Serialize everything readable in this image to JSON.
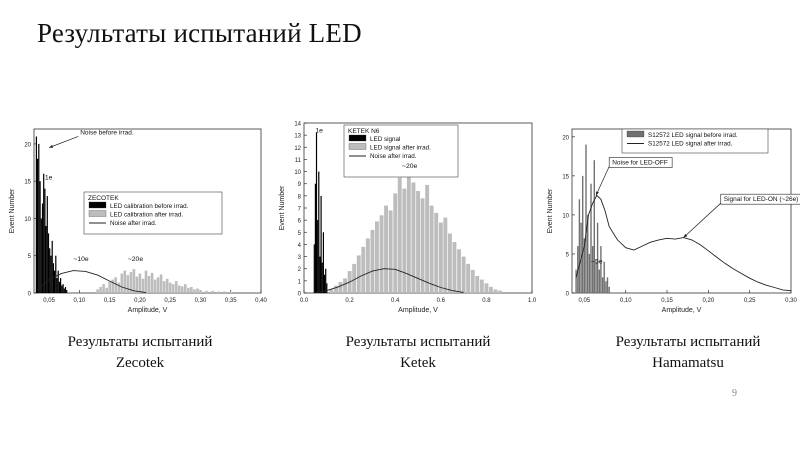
{
  "slide": {
    "title": "Результаты испытаний LED",
    "page_number": "9",
    "captions": [
      {
        "line1": "Результаты испытаний",
        "line2": "Zecotek"
      },
      {
        "line1": "Результаты испытаний",
        "line2": "Ketek"
      },
      {
        "line1": "Результаты  испытаний",
        "line2": "Hamamatsu"
      }
    ]
  },
  "colors": {
    "black": "#000000",
    "gray": "#bdbdbd",
    "darkgray": "#707070",
    "line": "#222222"
  },
  "chart_data": [
    {
      "type": "bar",
      "title": "ZECOTEK",
      "xlabel": "Amplitude, V",
      "ylabel": "Event Number",
      "xlim": [
        0.025,
        0.4
      ],
      "ylim": [
        0,
        22
      ],
      "xticks": [
        0.05,
        0.1,
        0.15,
        0.2,
        0.25,
        0.3,
        0.35,
        0.4
      ],
      "xticklabels": [
        "0,05",
        "0,10",
        "0,15",
        "0,20",
        "0,25",
        "0,30",
        "0,35",
        "0,40"
      ],
      "yticks": [
        0,
        5,
        10,
        15,
        20
      ],
      "legend": [
        {
          "label": "LED calibration before irrad.",
          "style": "black-fill"
        },
        {
          "label": "LED calibration after irrad.",
          "style": "gray-fill"
        },
        {
          "label": "Noise after irrad.",
          "style": "line"
        }
      ],
      "annotations": [
        {
          "text": "Noise before irrad.",
          "x": 0.05,
          "y": 19.5,
          "arrow": true,
          "tx": 0.098,
          "ty": 21
        },
        {
          "text": "1e",
          "x": 0.043,
          "y": 15.2
        },
        {
          "text": "~10e",
          "x": 0.09,
          "y": 4.3
        },
        {
          "text": "~20e",
          "x": 0.18,
          "y": 4.3
        }
      ],
      "series": [
        {
          "name": "LED calibration before irrad.",
          "style": "black",
          "x": [
            0.029,
            0.031,
            0.033,
            0.035,
            0.037,
            0.039,
            0.041,
            0.043,
            0.045,
            0.047,
            0.049,
            0.051,
            0.053,
            0.055,
            0.057,
            0.059,
            0.061,
            0.063,
            0.065,
            0.067,
            0.069,
            0.071,
            0.073,
            0.075,
            0.077,
            0.079
          ],
          "values": [
            21,
            18,
            20,
            15,
            10,
            12,
            16,
            14,
            9,
            13,
            8,
            6,
            5,
            7,
            4,
            3,
            5,
            2,
            3,
            1.5,
            2,
            1,
            1.2,
            0.6,
            0.8,
            0.4
          ]
        },
        {
          "name": "LED calibration after irrad.",
          "style": "gray",
          "x": [
            0.13,
            0.135,
            0.14,
            0.145,
            0.15,
            0.155,
            0.16,
            0.165,
            0.17,
            0.175,
            0.18,
            0.185,
            0.19,
            0.195,
            0.2,
            0.205,
            0.21,
            0.215,
            0.22,
            0.225,
            0.23,
            0.235,
            0.24,
            0.245,
            0.25,
            0.255,
            0.26,
            0.265,
            0.27,
            0.275,
            0.28,
            0.285,
            0.29,
            0.295,
            0.3,
            0.31,
            0.32,
            0.33,
            0.34,
            0.35
          ],
          "values": [
            0.5,
            0.8,
            1.2,
            0.7,
            1.5,
            1.8,
            2.1,
            1.4,
            2.6,
            3.0,
            2.4,
            2.8,
            3.2,
            2.2,
            2.6,
            1.9,
            3.0,
            2.3,
            2.7,
            1.8,
            2.1,
            2.5,
            1.6,
            1.9,
            1.4,
            1.2,
            1.6,
            1.0,
            0.9,
            1.2,
            0.7,
            0.8,
            0.5,
            0.6,
            0.4,
            0.3,
            0.3,
            0.2,
            0.2,
            0.1
          ]
        },
        {
          "name": "Noise after irrad.",
          "style": "line",
          "x": [
            0.03,
            0.05,
            0.07,
            0.09,
            0.11,
            0.13,
            0.15,
            0.17,
            0.19,
            0.21
          ],
          "values": [
            0.4,
            1.8,
            2.6,
            3.0,
            2.9,
            2.4,
            1.6,
            0.8,
            0.3,
            0.05
          ]
        }
      ]
    },
    {
      "type": "bar",
      "title": "KETEK N6",
      "xlabel": "Amplitude, V",
      "ylabel": "Event Number",
      "xlim": [
        0,
        1.0
      ],
      "ylim": [
        0,
        14
      ],
      "xticks": [
        0.0,
        0.2,
        0.4,
        0.6,
        0.8,
        1.0
      ],
      "xticklabels": [
        "0.0",
        "0.2",
        "0.4",
        "0.6",
        "0.8",
        "1.0"
      ],
      "yticks": [
        0,
        1,
        2,
        3,
        4,
        5,
        6,
        7,
        8,
        9,
        10,
        11,
        12,
        13,
        14
      ],
      "legend": [
        {
          "label": "LED signal",
          "style": "black-fill"
        },
        {
          "label": "LED signal after irrad.",
          "style": "gray-fill"
        },
        {
          "label": "Noise after irrad.",
          "style": "line"
        }
      ],
      "annotations": [
        {
          "text": "1e",
          "x": 0.05,
          "y": 13.2
        },
        {
          "text": "~20e",
          "x": 0.43,
          "y": 10.3
        }
      ],
      "series": [
        {
          "name": "LED signal",
          "style": "black",
          "x": [
            0.045,
            0.05,
            0.055,
            0.06,
            0.065,
            0.07,
            0.075,
            0.08,
            0.085,
            0.09,
            0.095,
            0.1
          ],
          "values": [
            4,
            9,
            13.2,
            6,
            10,
            3,
            8,
            2.5,
            5,
            1.5,
            2,
            0.8
          ]
        },
        {
          "name": "LED signal after irrad.",
          "style": "gray",
          "x": [
            0.12,
            0.14,
            0.16,
            0.18,
            0.2,
            0.22,
            0.24,
            0.26,
            0.28,
            0.3,
            0.32,
            0.34,
            0.36,
            0.38,
            0.4,
            0.42,
            0.44,
            0.46,
            0.48,
            0.5,
            0.52,
            0.54,
            0.56,
            0.58,
            0.6,
            0.62,
            0.64,
            0.66,
            0.68,
            0.7,
            0.72,
            0.74,
            0.76,
            0.78,
            0.8,
            0.82,
            0.84,
            0.86
          ],
          "values": [
            0.3,
            0.6,
            0.9,
            1.2,
            1.8,
            2.4,
            3.1,
            3.8,
            4.5,
            5.2,
            5.9,
            6.4,
            7.2,
            6.8,
            8.2,
            9.5,
            8.6,
            10.2,
            9.1,
            8.4,
            7.8,
            8.9,
            7.2,
            6.6,
            5.8,
            6.2,
            4.9,
            4.2,
            3.6,
            3.0,
            2.4,
            1.9,
            1.4,
            1.1,
            0.8,
            0.5,
            0.3,
            0.2
          ]
        },
        {
          "name": "Noise after irrad.",
          "style": "line",
          "x": [
            0.05,
            0.1,
            0.15,
            0.2,
            0.25,
            0.3,
            0.35,
            0.4,
            0.45,
            0.5,
            0.55,
            0.6,
            0.65,
            0.7
          ],
          "values": [
            0.05,
            0.2,
            0.5,
            0.9,
            1.4,
            1.8,
            2.0,
            1.95,
            1.6,
            1.2,
            0.8,
            0.45,
            0.2,
            0.05
          ]
        }
      ]
    },
    {
      "type": "bar",
      "title": "",
      "xlabel": "Amplitude, V",
      "ylabel": "Event Number",
      "xlim": [
        0.035,
        0.3
      ],
      "ylim": [
        0,
        21
      ],
      "xticks": [
        0.05,
        0.1,
        0.15,
        0.2,
        0.25,
        0.3
      ],
      "xticklabels": [
        "0,05",
        "0,10",
        "0,15",
        "0,20",
        "0,25",
        "0,30"
      ],
      "yticks": [
        0,
        5,
        10,
        15,
        20
      ],
      "legend": [
        {
          "label": "S12572 LED signal before irrad.",
          "style": "darkgray-fill"
        },
        {
          "label": "S12572 LED signal after irrad.",
          "style": "line"
        }
      ],
      "annotations": [
        {
          "text": "Noise for LED-OFF",
          "x": 0.064,
          "y": 12.5,
          "arrow": true,
          "tx": 0.08,
          "ty": 16.2
        },
        {
          "text": "Signal for LED-ON (~26e)",
          "x": 0.17,
          "y": 7.1,
          "arrow": true,
          "tx": 0.215,
          "ty": 11.5
        },
        {
          "text": "~5e",
          "x": 0.058,
          "y": 3.8
        }
      ],
      "series": [
        {
          "name": "S12572 LED signal before irrad.",
          "style": "darkgray",
          "x": [
            0.04,
            0.042,
            0.044,
            0.046,
            0.048,
            0.05,
            0.052,
            0.054,
            0.056,
            0.058,
            0.06,
            0.062,
            0.064,
            0.066,
            0.068,
            0.07,
            0.072,
            0.074,
            0.076,
            0.078,
            0.08
          ],
          "values": [
            3,
            6,
            12,
            9,
            15,
            7,
            19,
            10,
            5,
            14,
            6,
            17,
            4,
            9,
            3,
            6,
            2,
            4,
            1.5,
            2,
            0.8
          ]
        },
        {
          "name": "S12572 LED signal after irrad.",
          "style": "line",
          "x": [
            0.04,
            0.05,
            0.055,
            0.06,
            0.065,
            0.07,
            0.075,
            0.08,
            0.09,
            0.1,
            0.11,
            0.12,
            0.13,
            0.14,
            0.15,
            0.16,
            0.17,
            0.18,
            0.19,
            0.2,
            0.21,
            0.22,
            0.23,
            0.24,
            0.25,
            0.26,
            0.27,
            0.28,
            0.29,
            0.3
          ],
          "values": [
            2,
            6,
            10,
            11.5,
            12.5,
            12,
            10.5,
            8.5,
            6.8,
            5.8,
            5.5,
            6.0,
            6.5,
            6.8,
            7.0,
            6.9,
            7.1,
            6.8,
            6.2,
            5.4,
            4.6,
            3.8,
            3.1,
            2.5,
            1.9,
            1.4,
            1.0,
            0.7,
            0.4,
            0.3
          ]
        }
      ]
    }
  ]
}
